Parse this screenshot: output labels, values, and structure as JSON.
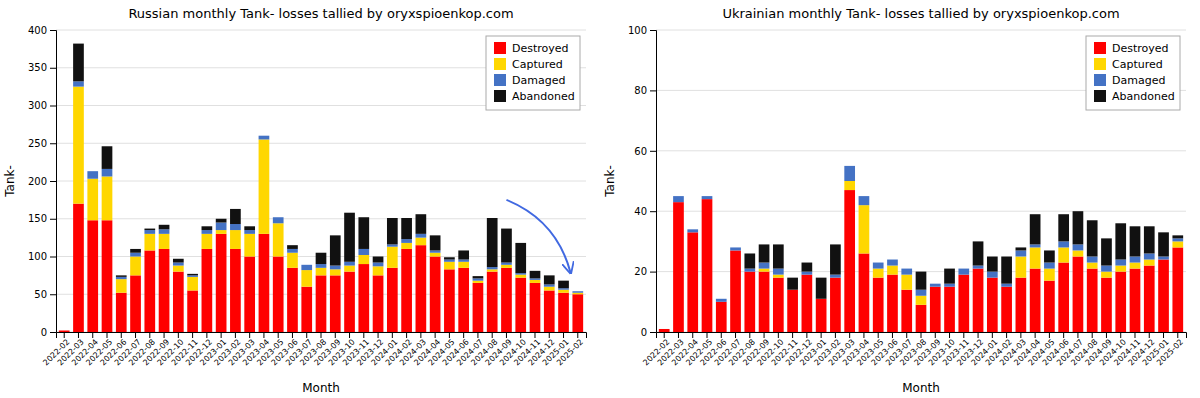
{
  "chart_data": [
    {
      "type": "bar",
      "stacked": true,
      "grid": true,
      "legend": "upper right",
      "title": "Russian monthly Tank- losses tallied by oryxspioenkop.com",
      "xlabel": "Month",
      "ylabel": "Tank-",
      "categories": [
        "2022-02",
        "2022-03",
        "2022-04",
        "2022-05",
        "2022-06",
        "2022-07",
        "2022-08",
        "2022-09",
        "2022-10",
        "2022-11",
        "2022-12",
        "2023-01",
        "2023-02",
        "2023-03",
        "2023-04",
        "2023-05",
        "2023-06",
        "2023-07",
        "2023-08",
        "2023-09",
        "2023-10",
        "2023-11",
        "2023-12",
        "2024-01",
        "2024-02",
        "2024-03",
        "2024-04",
        "2024-05",
        "2024-06",
        "2024-07",
        "2024-08",
        "2024-09",
        "2024-10",
        "2024-11",
        "2024-12",
        "2025-01",
        "2025-02"
      ],
      "series": [
        {
          "name": "Destroyed",
          "color": "#FF0000",
          "values": [
            2,
            170,
            148,
            148,
            52,
            75,
            108,
            110,
            80,
            55,
            110,
            130,
            110,
            100,
            130,
            100,
            85,
            60,
            75,
            75,
            80,
            90,
            75,
            85,
            110,
            115,
            100,
            83,
            85,
            65,
            80,
            85,
            72,
            65,
            55,
            52,
            50
          ]
        },
        {
          "name": "Captured",
          "color": "#FFD700",
          "values": [
            0,
            155,
            55,
            58,
            18,
            25,
            22,
            20,
            8,
            18,
            20,
            5,
            25,
            30,
            125,
            44,
            20,
            22,
            10,
            8,
            8,
            12,
            12,
            28,
            8,
            10,
            5,
            10,
            8,
            3,
            3,
            4,
            4,
            4,
            5,
            4,
            2
          ]
        },
        {
          "name": "Damaged",
          "color": "#4472C4",
          "values": [
            0,
            7,
            10,
            10,
            3,
            5,
            5,
            6,
            4,
            2,
            5,
            10,
            8,
            5,
            5,
            8,
            5,
            7,
            5,
            5,
            5,
            8,
            5,
            3,
            5,
            5,
            3,
            3,
            3,
            3,
            3,
            3,
            2,
            2,
            3,
            2,
            2
          ]
        },
        {
          "name": "Abandoned",
          "color": "#111111",
          "values": [
            0,
            50,
            0,
            30,
            2,
            5,
            2,
            6,
            5,
            2,
            5,
            5,
            20,
            5,
            0,
            0,
            5,
            0,
            15,
            40,
            65,
            42,
            8,
            35,
            28,
            26,
            20,
            3,
            12,
            3,
            65,
            45,
            40,
            10,
            12,
            10,
            0
          ]
        }
      ],
      "ylim": [
        0,
        400
      ],
      "yticks": [
        0,
        50,
        100,
        150,
        200,
        250,
        300,
        350,
        400
      ],
      "annotations": [
        {
          "type": "arrow",
          "xytext": [
            31,
            175
          ],
          "xy": [
            35.5,
            78
          ],
          "color": "#4169E1"
        }
      ]
    },
    {
      "type": "bar",
      "stacked": true,
      "grid": true,
      "legend": "upper right",
      "title": "Ukrainian monthly Tank- losses tallied by oryxspioenkop.com",
      "xlabel": "Month",
      "ylabel": "Tank-",
      "categories": [
        "2022-02",
        "2022-03",
        "2022-04",
        "2022-05",
        "2022-06",
        "2022-07",
        "2022-08",
        "2022-09",
        "2022-10",
        "2022-11",
        "2022-12",
        "2023-01",
        "2023-02",
        "2023-03",
        "2023-04",
        "2023-05",
        "2023-06",
        "2023-07",
        "2023-08",
        "2023-09",
        "2023-10",
        "2023-11",
        "2023-12",
        "2024-01",
        "2024-02",
        "2024-03",
        "2024-04",
        "2024-05",
        "2024-06",
        "2024-07",
        "2024-08",
        "2024-09",
        "2024-10",
        "2024-11",
        "2024-12",
        "2025-01",
        "2025-02"
      ],
      "series": [
        {
          "name": "Destroyed",
          "color": "#FF0000",
          "values": [
            1,
            43,
            33,
            44,
            10,
            27,
            20,
            20,
            18,
            14,
            19,
            11,
            18,
            47,
            26,
            18,
            19,
            14,
            9,
            15,
            15,
            19,
            21,
            18,
            15,
            18,
            21,
            17,
            23,
            25,
            21,
            18,
            20,
            21,
            22,
            24,
            28
          ]
        },
        {
          "name": "Captured",
          "color": "#FFD700",
          "values": [
            0,
            0,
            0,
            0,
            0,
            0,
            0,
            1,
            1,
            0,
            0,
            0,
            0,
            3,
            16,
            3,
            3,
            5,
            3,
            0,
            0,
            0,
            0,
            0,
            0,
            7,
            7,
            4,
            5,
            2,
            2,
            2,
            2,
            2,
            2,
            0,
            2
          ]
        },
        {
          "name": "Damaged",
          "color": "#4472C4",
          "values": [
            0,
            2,
            1,
            1,
            1,
            1,
            1,
            2,
            2,
            0,
            1,
            0,
            1,
            5,
            3,
            2,
            2,
            2,
            2,
            1,
            1,
            2,
            1,
            2,
            1,
            2,
            1,
            2,
            2,
            2,
            2,
            2,
            2,
            2,
            2,
            1,
            1
          ]
        },
        {
          "name": "Abandoned",
          "color": "#111111",
          "values": [
            0,
            0,
            0,
            0,
            0,
            0,
            5,
            6,
            8,
            4,
            3,
            7,
            10,
            0,
            0,
            0,
            0,
            0,
            6,
            0,
            5,
            0,
            8,
            5,
            9,
            1,
            10,
            4,
            9,
            11,
            12,
            9,
            12,
            10,
            9,
            8,
            1
          ]
        }
      ],
      "ylim": [
        0,
        100
      ],
      "yticks": [
        0,
        20,
        40,
        60,
        80,
        100
      ]
    }
  ]
}
